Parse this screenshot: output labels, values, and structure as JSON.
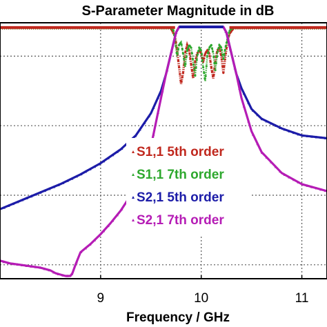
{
  "chart_data": {
    "type": "line",
    "title": "S-Parameter Magnitude in dB",
    "xlabel": "Frequency / GHz",
    "ylabel": "",
    "xlim": [
      8.0,
      11.25
    ],
    "ylim": [
      -90,
      2
    ],
    "x_ticks": [
      9,
      10,
      11
    ],
    "x_tick_labels": [
      "9",
      "10",
      "11"
    ],
    "y_grid": [
      -10,
      -35,
      -60,
      -85
    ],
    "grid": "dotted",
    "legend_placement": "center-right",
    "series": [
      {
        "name": "S1,1 5th order",
        "color": "#c0281e",
        "style": "dots",
        "points": [
          [
            8.0,
            0
          ],
          [
            9.7,
            0
          ],
          [
            9.74,
            -3
          ],
          [
            9.76,
            -8
          ],
          [
            9.78,
            -14
          ],
          [
            9.8,
            -20
          ],
          [
            9.82,
            -16
          ],
          [
            9.84,
            -9
          ],
          [
            9.86,
            -6
          ],
          [
            9.88,
            -8
          ],
          [
            9.9,
            -13
          ],
          [
            9.92,
            -18
          ],
          [
            9.94,
            -12
          ],
          [
            9.96,
            -9
          ],
          [
            9.98,
            -8
          ],
          [
            10.0,
            -9
          ],
          [
            10.02,
            -12
          ],
          [
            10.04,
            -9
          ],
          [
            10.06,
            -8
          ],
          [
            10.08,
            -9
          ],
          [
            10.1,
            -14
          ],
          [
            10.12,
            -18
          ],
          [
            10.14,
            -12
          ],
          [
            10.16,
            -8
          ],
          [
            10.18,
            -7
          ],
          [
            10.2,
            -10
          ],
          [
            10.22,
            -16
          ],
          [
            10.24,
            -10
          ],
          [
            10.26,
            -5
          ],
          [
            10.28,
            -2
          ],
          [
            10.3,
            -1
          ],
          [
            10.32,
            0
          ],
          [
            11.25,
            0
          ]
        ]
      },
      {
        "name": "S1,1 7th order",
        "color": "#2ea82e",
        "style": "dots",
        "points": [
          [
            8.0,
            0
          ],
          [
            9.72,
            0
          ],
          [
            9.74,
            -4
          ],
          [
            9.76,
            -10
          ],
          [
            9.78,
            -6
          ],
          [
            9.8,
            -5
          ],
          [
            9.82,
            -9
          ],
          [
            9.84,
            -14
          ],
          [
            9.86,
            -8
          ],
          [
            9.88,
            -6
          ],
          [
            9.9,
            -7
          ],
          [
            9.92,
            -12
          ],
          [
            9.94,
            -17
          ],
          [
            9.96,
            -10
          ],
          [
            9.98,
            -7
          ],
          [
            10.0,
            -8
          ],
          [
            10.02,
            -14
          ],
          [
            10.04,
            -19
          ],
          [
            10.06,
            -10
          ],
          [
            10.08,
            -7
          ],
          [
            10.1,
            -6
          ],
          [
            10.12,
            -9
          ],
          [
            10.14,
            -15
          ],
          [
            10.16,
            -9
          ],
          [
            10.18,
            -6
          ],
          [
            10.2,
            -7
          ],
          [
            10.22,
            -11
          ],
          [
            10.24,
            -7
          ],
          [
            10.26,
            -4
          ],
          [
            10.28,
            -1
          ],
          [
            10.3,
            0
          ],
          [
            11.25,
            0
          ]
        ]
      },
      {
        "name": "S2,1 5th order",
        "color": "#1c1ca8",
        "style": "line",
        "points": [
          [
            8.0,
            -65
          ],
          [
            8.2,
            -62
          ],
          [
            8.4,
            -59
          ],
          [
            8.6,
            -56
          ],
          [
            8.8,
            -52.5
          ],
          [
            9.0,
            -48.5
          ],
          [
            9.2,
            -43.5
          ],
          [
            9.35,
            -38.5
          ],
          [
            9.5,
            -30.5
          ],
          [
            9.6,
            -22.5
          ],
          [
            9.65,
            -16.5
          ],
          [
            9.7,
            -9
          ],
          [
            9.75,
            -1.5
          ],
          [
            9.78,
            0.5
          ],
          [
            10.22,
            0.5
          ],
          [
            10.25,
            -1.5
          ],
          [
            10.3,
            -9
          ],
          [
            10.35,
            -16.5
          ],
          [
            10.4,
            -21.5
          ],
          [
            10.5,
            -29
          ],
          [
            10.6,
            -32.5
          ],
          [
            10.8,
            -36
          ],
          [
            11.0,
            -38.5
          ],
          [
            11.25,
            -39.5
          ]
        ]
      },
      {
        "name": "S2,1 7th order",
        "color": "#b51cb5",
        "style": "line",
        "points": [
          [
            8.0,
            -83.5
          ],
          [
            8.1,
            -84.5
          ],
          [
            8.2,
            -85
          ],
          [
            8.3,
            -85.5
          ],
          [
            8.4,
            -86
          ],
          [
            8.45,
            -86.5
          ],
          [
            8.5,
            -87
          ],
          [
            8.55,
            -88
          ],
          [
            8.6,
            -88.5
          ],
          [
            8.65,
            -89
          ],
          [
            8.7,
            -89
          ],
          [
            8.72,
            -88
          ],
          [
            8.75,
            -85
          ],
          [
            8.8,
            -80.5
          ],
          [
            8.9,
            -77.5
          ],
          [
            9.0,
            -74
          ],
          [
            9.1,
            -70
          ],
          [
            9.2,
            -65.5
          ],
          [
            9.3,
            -60
          ],
          [
            9.4,
            -53
          ],
          [
            9.5,
            -42.5
          ],
          [
            9.6,
            -25
          ],
          [
            9.65,
            -16.5
          ],
          [
            9.7,
            -9
          ],
          [
            9.75,
            -1.5
          ],
          [
            9.78,
            0.5
          ],
          [
            10.22,
            0.5
          ],
          [
            10.25,
            -1.5
          ],
          [
            10.3,
            -9
          ],
          [
            10.35,
            -16.5
          ],
          [
            10.4,
            -25
          ],
          [
            10.5,
            -37
          ],
          [
            10.6,
            -44.5
          ],
          [
            10.8,
            -52
          ],
          [
            11.0,
            -56
          ],
          [
            11.25,
            -58.5
          ]
        ]
      }
    ]
  }
}
